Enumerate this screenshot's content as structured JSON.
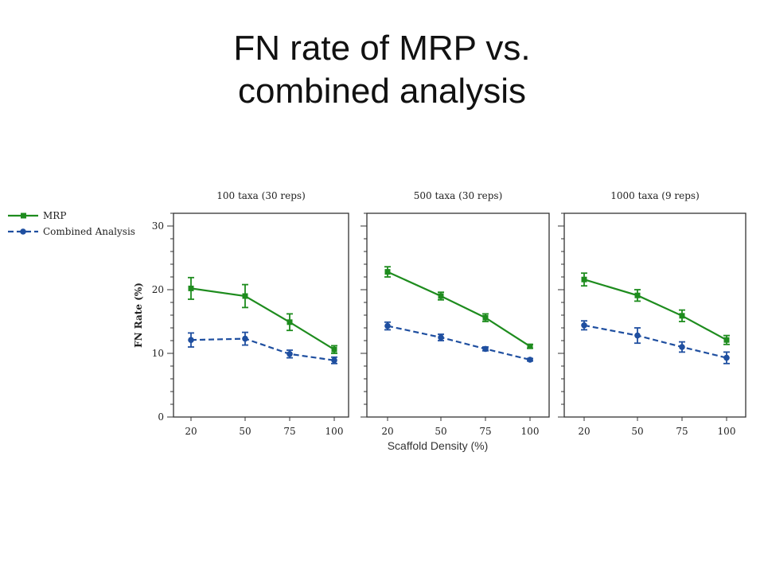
{
  "slide": {
    "title_line1": "FN rate of MRP vs.",
    "title_line2": "combined analysis"
  },
  "chart_data": {
    "type": "line",
    "x_label": "Scaffold Density (%)",
    "y_label": "FN Rate (%)",
    "x_categories": [
      "20",
      "50",
      "75",
      "100"
    ],
    "ylim": [
      0,
      32
    ],
    "y_ticks": [
      0,
      10,
      20,
      30
    ],
    "legend": {
      "placement": "top-left",
      "entries": [
        "MRP",
        "Combined Analysis"
      ]
    },
    "colors": {
      "MRP": "#1e8c1e",
      "Combined Analysis": "#1f4fa0"
    },
    "panels": [
      {
        "title": "100 taxa (30 reps)",
        "series": [
          {
            "name": "MRP",
            "values": [
              20.2,
              19.0,
              14.9,
              10.6
            ],
            "errors": [
              1.7,
              1.8,
              1.3,
              0.6
            ]
          },
          {
            "name": "Combined Analysis",
            "values": [
              12.1,
              12.3,
              9.9,
              8.9
            ],
            "errors": [
              1.1,
              1.0,
              0.6,
              0.5
            ]
          }
        ]
      },
      {
        "title": "500 taxa (30 reps)",
        "series": [
          {
            "name": "MRP",
            "values": [
              22.8,
              19.0,
              15.6,
              11.1
            ],
            "errors": [
              0.8,
              0.6,
              0.6,
              0.3
            ]
          },
          {
            "name": "Combined Analysis",
            "values": [
              14.3,
              12.5,
              10.7,
              9.0
            ],
            "errors": [
              0.6,
              0.5,
              0.3,
              0.2
            ]
          }
        ]
      },
      {
        "title": "1000 taxa (9 reps)",
        "series": [
          {
            "name": "MRP",
            "values": [
              21.6,
              19.1,
              15.9,
              12.1
            ],
            "errors": [
              1.0,
              0.9,
              0.9,
              0.7
            ]
          },
          {
            "name": "Combined Analysis",
            "values": [
              14.4,
              12.8,
              11.0,
              9.3
            ],
            "errors": [
              0.7,
              1.2,
              0.8,
              0.9
            ]
          }
        ]
      }
    ]
  }
}
